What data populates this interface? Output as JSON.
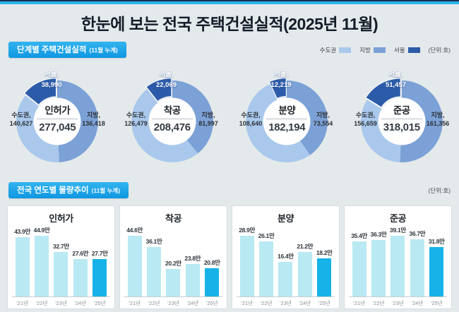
{
  "title": "한눈에 보는 전국 주택건설실적(2025년 11월)",
  "colors": {
    "accent": "#18a2e8",
    "top_navy": "#1a2f55",
    "top_cyan": "#27b6ea",
    "capital": "#a9c8ec",
    "regional": "#7ba1d6",
    "seoul": "#2c5ca9",
    "bar": "#b9e9f2",
    "bar_highlight": "#16b2e8",
    "background": "#e4e9eb"
  },
  "section1": {
    "header": "단계별 주택건설실적",
    "note": "(11월 누계)",
    "legend": {
      "items": [
        {
          "label": "수도권",
          "color": "#a9c8ec"
        },
        {
          "label": "지방",
          "color": "#7ba1d6"
        },
        {
          "label": "서울",
          "color": "#2c5ca9"
        }
      ],
      "unit": "(단위:호)"
    }
  },
  "section2": {
    "header": "전국 연도별 물량추이",
    "note": "(11월 누계)",
    "unit": "(단위:호)"
  },
  "chart_data": [
    {
      "type": "pie",
      "subtype": "donut",
      "title": "단계별 주택건설실적 (11월 누계)",
      "unit": "호",
      "legend": [
        "수도권",
        "지방",
        "서울"
      ],
      "legend_position": "top-right",
      "note": "서울 is a subset of 수도권; ring shows 지방, 수도권(excl. 서울), 서울 clockwise from top; 서울 slice exploded",
      "donuts": [
        {
          "name": "인허가",
          "total": 277045,
          "total_display": "277,045",
          "capital": {
            "label": "수도권",
            "value": 140627,
            "display": "140,627"
          },
          "regional": {
            "label": "지방",
            "value": 136418,
            "display": "136,418"
          },
          "seoul": {
            "label": "서울",
            "value": 38990,
            "display": "38,990"
          }
        },
        {
          "name": "착공",
          "total": 208476,
          "total_display": "208,476",
          "capital": {
            "label": "수도권",
            "value": 126479,
            "display": "126,479"
          },
          "regional": {
            "label": "지방",
            "value": 81997,
            "display": "81,997"
          },
          "seoul": {
            "label": "서울",
            "value": 22069,
            "display": "22,069"
          }
        },
        {
          "name": "분양",
          "total": 182194,
          "total_display": "182,194",
          "capital": {
            "label": "수도권",
            "value": 108640,
            "display": "108,640"
          },
          "regional": {
            "label": "지방",
            "value": 73554,
            "display": "73,554"
          },
          "seoul": {
            "label": "서울",
            "value": 12219,
            "display": "12,219"
          }
        },
        {
          "name": "준공",
          "total": 318015,
          "total_display": "318,015",
          "capital": {
            "label": "수도권",
            "value": 156659,
            "display": "156,659"
          },
          "regional": {
            "label": "지방",
            "value": 161356,
            "display": "161,356"
          },
          "seoul": {
            "label": "서울",
            "value": 51457,
            "display": "51,457"
          }
        }
      ]
    },
    {
      "type": "bar",
      "title": "전국 연도별 물량추이 (11월 누계)",
      "unit": "만호",
      "categories": [
        "'21년",
        "'22년",
        "'23년",
        "'24년",
        "'25년"
      ],
      "highlight_last_bar": true,
      "series": [
        {
          "name": "인허가",
          "values": [
            43.9,
            44.9,
            32.7,
            27.6,
            27.7
          ],
          "labels": [
            "43.9만",
            "44.9만",
            "32.7만",
            "27.6만",
            "27.7만"
          ]
        },
        {
          "name": "착공",
          "values": [
            44.6,
            36.1,
            20.2,
            23.8,
            20.8
          ],
          "labels": [
            "44.6만",
            "36.1만",
            "20.2만",
            "23.8만",
            "20.8만"
          ]
        },
        {
          "name": "분양",
          "values": [
            28.9,
            26.1,
            16.4,
            21.2,
            18.2
          ],
          "labels": [
            "28.9만",
            "26.1만",
            "16.4만",
            "21.2만",
            "18.2만"
          ]
        },
        {
          "name": "준공",
          "values": [
            35.4,
            36.3,
            39.1,
            36.7,
            31.8
          ],
          "labels": [
            "35.4만",
            "36.3만",
            "39.1만",
            "36.7만",
            "31.8만"
          ]
        }
      ]
    }
  ]
}
